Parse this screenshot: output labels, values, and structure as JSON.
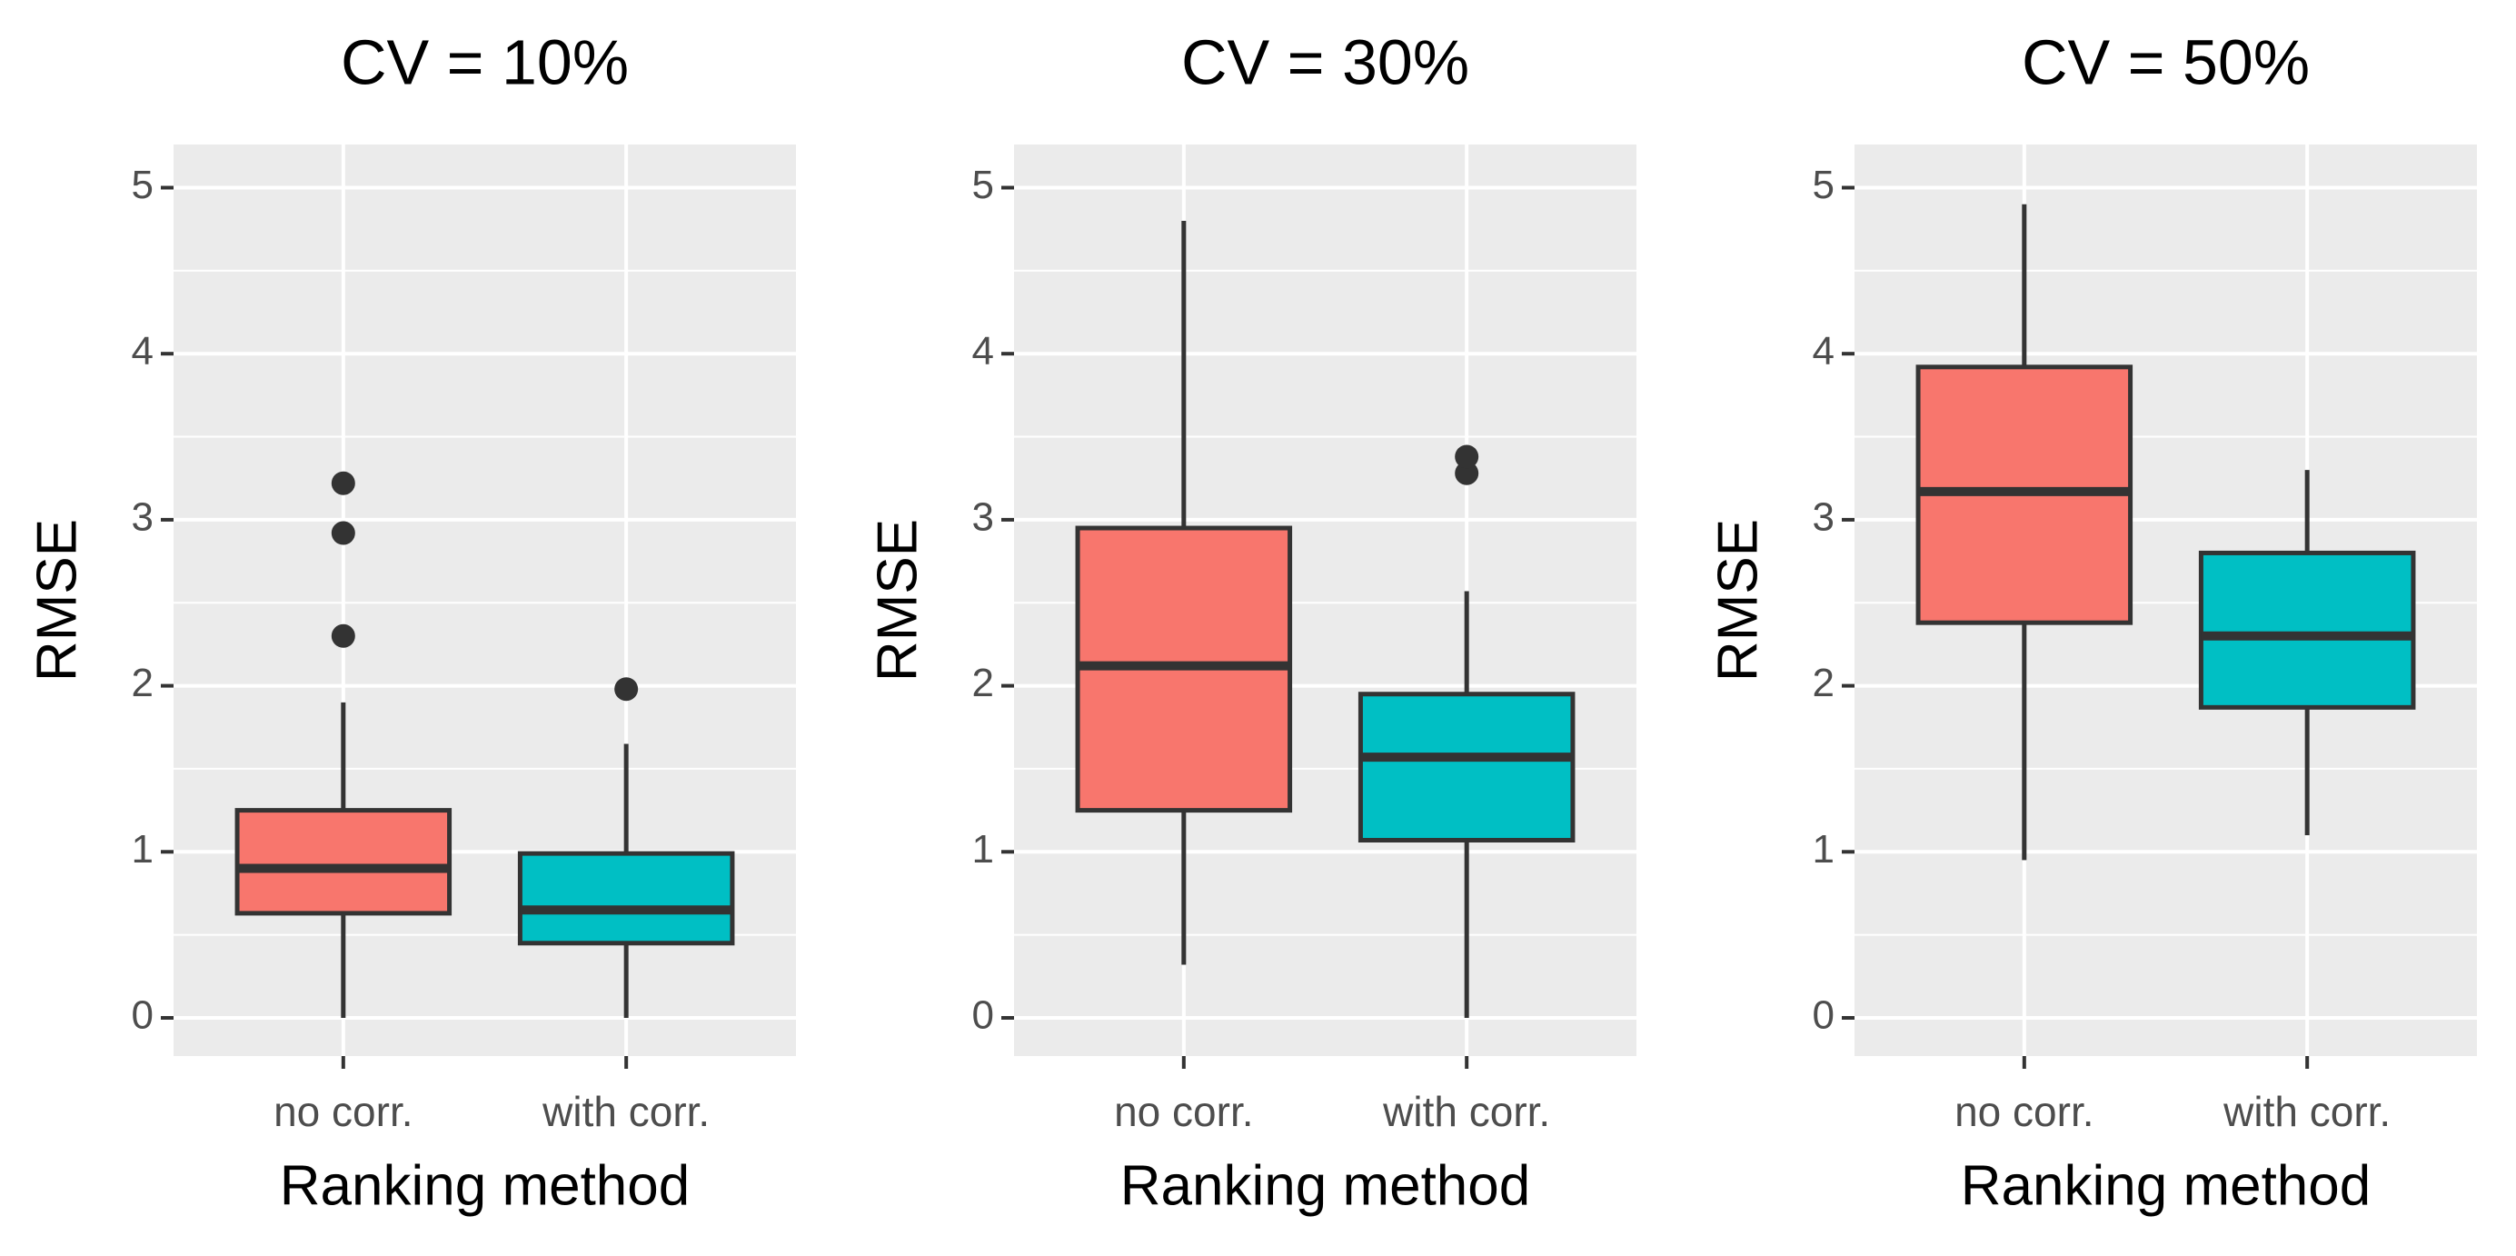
{
  "chart_data": [
    {
      "type": "box",
      "title": "CV = 10%",
      "xlabel": "Ranking method",
      "ylabel": "RMSE",
      "categories": [
        "no corr.",
        "with corr."
      ],
      "colors": [
        "#f8766d",
        "#00bfc4"
      ],
      "boxes": [
        {
          "whislo": 0,
          "q1": 0.63,
          "med": 0.9,
          "q3": 1.25,
          "whishi": 1.9,
          "fliers": [
            2.3,
            2.92,
            3.22
          ]
        },
        {
          "whislo": 0,
          "q1": 0.45,
          "med": 0.65,
          "q3": 0.99,
          "whishi": 1.65,
          "fliers": [
            1.98
          ]
        }
      ],
      "ylim": [
        -0.23,
        5.26
      ],
      "yticks": [
        0,
        1,
        2,
        3,
        4,
        5
      ],
      "grid": true
    },
    {
      "type": "box",
      "title": "CV = 30%",
      "xlabel": "Ranking method",
      "ylabel": "RMSE",
      "categories": [
        "no corr.",
        "with corr."
      ],
      "colors": [
        "#f8766d",
        "#00bfc4"
      ],
      "boxes": [
        {
          "whislo": 0.32,
          "q1": 1.25,
          "med": 2.12,
          "q3": 2.95,
          "whishi": 4.8,
          "fliers": []
        },
        {
          "whislo": 0,
          "q1": 1.07,
          "med": 1.57,
          "q3": 1.95,
          "whishi": 2.57,
          "fliers": [
            3.28,
            3.38
          ]
        }
      ],
      "ylim": [
        -0.23,
        5.26
      ],
      "yticks": [
        0,
        1,
        2,
        3,
        4,
        5
      ],
      "grid": true
    },
    {
      "type": "box",
      "title": "CV = 50%",
      "xlabel": "Ranking method",
      "ylabel": "RMSE",
      "categories": [
        "no corr.",
        "with corr."
      ],
      "colors": [
        "#f8766d",
        "#00bfc4"
      ],
      "boxes": [
        {
          "whislo": 0.95,
          "q1": 2.38,
          "med": 3.17,
          "q3": 3.92,
          "whishi": 4.9,
          "fliers": []
        },
        {
          "whislo": 1.1,
          "q1": 1.87,
          "med": 2.3,
          "q3": 2.8,
          "whishi": 3.3,
          "fliers": []
        }
      ],
      "ylim": [
        -0.23,
        5.26
      ],
      "yticks": [
        0,
        1,
        2,
        3,
        4,
        5
      ],
      "grid": true
    }
  ]
}
